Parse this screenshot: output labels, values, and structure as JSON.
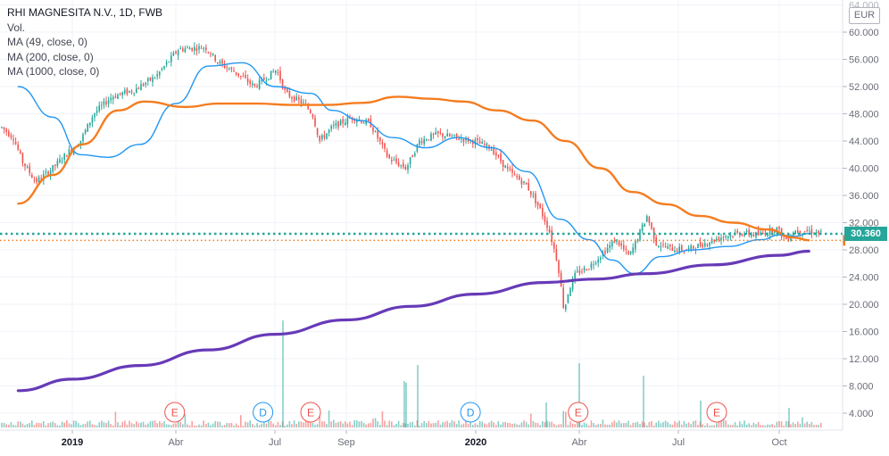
{
  "legend": {
    "title": "RHI MAGNESITA N.V., 1D, FWB",
    "volume": "Vol.",
    "ma49": "MA (49, close, 0)",
    "ma200": "MA (200, close, 0)",
    "ma1000": "MA (1000, close, 0)"
  },
  "currency": "EUR",
  "last_price": "30.360",
  "colors": {
    "up": "#26a69a",
    "down": "#ef5350",
    "ma49": "#2196f3",
    "ma200": "#f57c1f",
    "ma1000": "#673ab7",
    "earnings": "#ef5350",
    "dividend": "#2196f3",
    "grid": "#f0f3fa",
    "axis_text": "#6a6d78"
  },
  "chart_data": {
    "type": "line",
    "title": "RHI MAGNESITA N.V., 1D, FWB",
    "x_labels": [
      "2019",
      "Abr",
      "Jul",
      "Sep",
      "2020",
      "Abr",
      "Jul",
      "Oct"
    ],
    "y_ticks": [
      "4.000",
      "8.000",
      "12.000",
      "16.000",
      "20.000",
      "24.000",
      "28.000",
      "32.000",
      "36.000",
      "40.000",
      "44.000",
      "48.000",
      "52.000",
      "56.000",
      "60.000",
      "64.000"
    ],
    "ylim": [
      2,
      64
    ],
    "last_price": 30.36,
    "series": [
      {
        "name": "MA (49, close, 0)",
        "x": [
          "2018-11-15",
          "2018-12-15",
          "2019-01-08",
          "2019-02-01",
          "2019-03-01",
          "2019-04-01",
          "2019-05-01",
          "2019-06-01",
          "2019-07-01",
          "2019-08-01",
          "2019-08-20",
          "2019-09-15",
          "2019-10-15",
          "2019-11-15",
          "2019-12-15",
          "2020-01-15",
          "2020-02-15",
          "2020-03-15",
          "2020-04-10",
          "2020-05-01",
          "2020-05-22",
          "2020-06-15",
          "2020-07-15",
          "2020-08-15",
          "2020-09-15",
          "2020-10-01",
          "2020-10-15",
          "2020-10-28"
        ],
        "y": [
          52.0,
          47.5,
          42.0,
          41.6,
          43.5,
          49.5,
          55.0,
          55.5,
          52.0,
          51.0,
          48.5,
          47.0,
          44.5,
          43.0,
          44.5,
          43.0,
          39.5,
          32.5,
          29.5,
          26.5,
          24.5,
          27.0,
          28.0,
          28.5,
          29.5,
          30.2,
          30.0,
          30.4
        ]
      },
      {
        "name": "MA (200, close, 0)",
        "x": [
          "2018-11-15",
          "2018-12-15",
          "2019-01-10",
          "2019-02-10",
          "2019-03-05",
          "2019-04-10",
          "2019-05-10",
          "2019-06-15",
          "2019-07-15",
          "2019-08-15",
          "2019-09-15",
          "2019-10-20",
          "2019-11-20",
          "2019-12-20",
          "2020-01-20",
          "2020-02-20",
          "2020-03-20",
          "2020-04-20",
          "2020-05-20",
          "2020-06-20",
          "2020-07-20",
          "2020-08-20",
          "2020-09-20",
          "2020-10-15",
          "2020-10-28"
        ],
        "y": [
          34.8,
          39.0,
          43.5,
          48.5,
          49.8,
          49.0,
          49.5,
          49.5,
          49.3,
          49.3,
          49.6,
          50.5,
          50.2,
          49.8,
          48.5,
          47.0,
          44.0,
          40.0,
          36.5,
          34.7,
          33.0,
          32.0,
          31.0,
          29.8,
          29.4
        ]
      },
      {
        "name": "MA (1000, close, 0)",
        "x": [
          "2018-11-15",
          "2019-01-01",
          "2019-03-01",
          "2019-05-01",
          "2019-07-01",
          "2019-09-01",
          "2019-11-01",
          "2020-01-01",
          "2020-03-01",
          "2020-04-15",
          "2020-06-01",
          "2020-08-01",
          "2020-10-01",
          "2020-10-28"
        ],
        "y": [
          7.3,
          9.0,
          11.0,
          13.3,
          15.6,
          17.7,
          19.7,
          21.5,
          23.2,
          23.7,
          24.5,
          25.8,
          27.2,
          27.8
        ]
      }
    ],
    "events": [
      {
        "label": "E",
        "date": "2019-03-31"
      },
      {
        "label": "D",
        "date": "2019-06-20"
      },
      {
        "label": "E",
        "date": "2019-08-01"
      },
      {
        "label": "D",
        "date": "2019-12-27"
      },
      {
        "label": "E",
        "date": "2020-03-31"
      },
      {
        "label": "E",
        "date": "2020-08-05"
      }
    ]
  }
}
